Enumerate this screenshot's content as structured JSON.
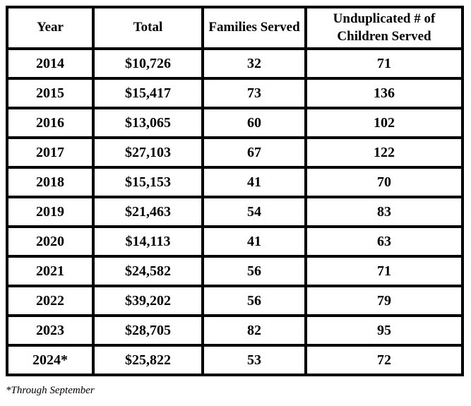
{
  "table": {
    "columns": [
      "Year",
      "Total",
      "Families Served",
      "Unduplicated # of Children Served"
    ],
    "rows": [
      [
        "2014",
        "$10,726",
        "32",
        "71"
      ],
      [
        "2015",
        "$15,417",
        "73",
        "136"
      ],
      [
        "2016",
        "$13,065",
        "60",
        "102"
      ],
      [
        "2017",
        "$27,103",
        "67",
        "122"
      ],
      [
        "2018",
        "$15,153",
        "41",
        "70"
      ],
      [
        "2019",
        "$21,463",
        "54",
        "83"
      ],
      [
        "2020",
        "$14,113",
        "41",
        "63"
      ],
      [
        "2021",
        "$24,582",
        "56",
        "71"
      ],
      [
        "2022",
        "$39,202",
        "56",
        "79"
      ],
      [
        "2023",
        "$28,705",
        "82",
        "95"
      ],
      [
        "2024*",
        "$25,822",
        "53",
        "72"
      ]
    ]
  },
  "footnote": "*Through September",
  "colors": {
    "border": "#000000",
    "text": "#000000",
    "background": "#ffffff"
  },
  "chart_data": {
    "type": "table",
    "title": "",
    "columns": [
      "Year",
      "Total",
      "Families Served",
      "Unduplicated # of Children Served"
    ],
    "years": [
      "2014",
      "2015",
      "2016",
      "2017",
      "2018",
      "2019",
      "2020",
      "2021",
      "2022",
      "2023",
      "2024*"
    ],
    "total_dollars": [
      10726,
      15417,
      13065,
      27103,
      15153,
      21463,
      14113,
      24582,
      39202,
      28705,
      25822
    ],
    "families_served": [
      32,
      73,
      60,
      67,
      41,
      54,
      41,
      56,
      56,
      82,
      53
    ],
    "unduplicated_children_served": [
      71,
      136,
      102,
      122,
      70,
      83,
      63,
      71,
      79,
      95,
      72
    ],
    "footnote": "*Through September"
  }
}
